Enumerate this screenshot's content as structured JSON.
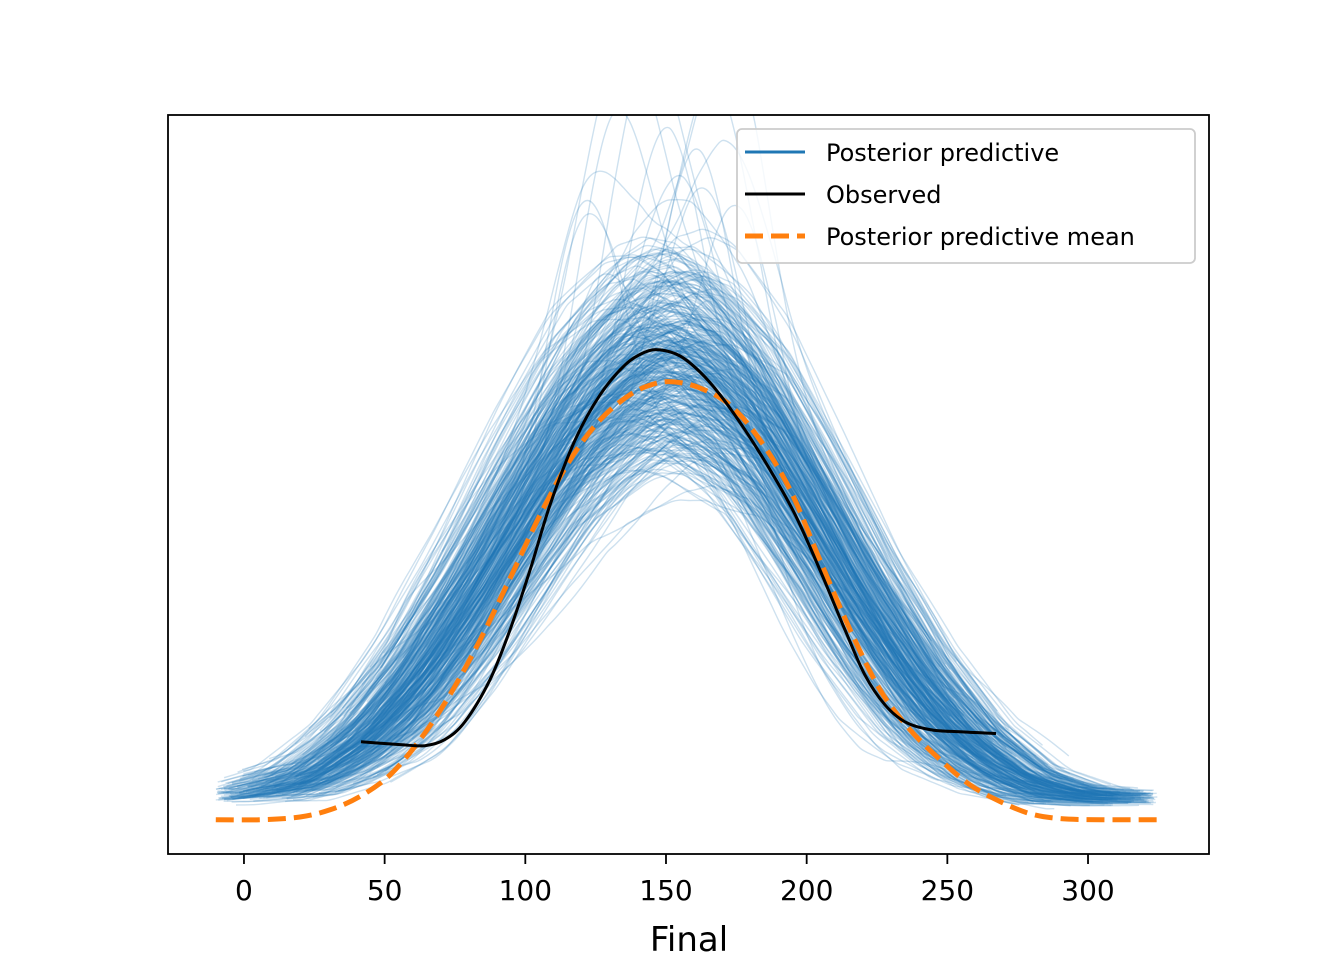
{
  "chart_data": {
    "type": "line",
    "title": "",
    "xlabel": "Final",
    "ylabel": "",
    "xlim": [
      -27,
      343
    ],
    "ylim": [
      -0.00062,
      0.01275
    ],
    "x_ticks": [
      0,
      50,
      100,
      150,
      200,
      250,
      300
    ],
    "x_tick_labels": [
      "0",
      "50",
      "100",
      "150",
      "200",
      "250",
      "300"
    ],
    "y_ticks_visible": false,
    "grid": false,
    "legend": {
      "placement": "top-right",
      "entries": [
        {
          "label": "Posterior predictive",
          "color": "#1f77b4",
          "style": "solid"
        },
        {
          "label": "Observed",
          "color": "#000000",
          "style": "solid"
        },
        {
          "label": "Posterior predictive mean",
          "color": "#ff7f0e",
          "style": "dashed"
        }
      ]
    },
    "series": [
      {
        "name": "Posterior predictive",
        "color": "#1f77b4",
        "style": "many translucent sample curves",
        "band_lower": {
          "x": [
            -10,
            20,
            40,
            60,
            80,
            100,
            120,
            140,
            150,
            160,
            180,
            200,
            220,
            240,
            260,
            280,
            300,
            325
          ],
          "y": [
            0.0003,
            0.0004,
            0.0008,
            0.0015,
            0.0027,
            0.0042,
            0.0056,
            0.0064,
            0.0066,
            0.0065,
            0.0058,
            0.0043,
            0.0027,
            0.0014,
            0.0007,
            0.00035,
            0.0003,
            0.0003
          ]
        },
        "band_upper": {
          "x": [
            -10,
            20,
            40,
            60,
            80,
            100,
            120,
            140,
            150,
            160,
            180,
            200,
            220,
            240,
            260,
            280,
            300,
            325
          ],
          "y": [
            0.0006,
            0.0011,
            0.002,
            0.0034,
            0.0052,
            0.0072,
            0.009,
            0.0101,
            0.0103,
            0.0101,
            0.0089,
            0.007,
            0.005,
            0.0033,
            0.0019,
            0.001,
            0.0006,
            0.0005
          ]
        }
      },
      {
        "name": "Observed",
        "color": "#000000",
        "style": "solid",
        "x": [
          41.6,
          55.5,
          64.3,
          71.4,
          78.5,
          87.4,
          94.6,
          101.7,
          108.8,
          117.7,
          126.6,
          135.5,
          142.5,
          147.9,
          155.0,
          162.1,
          169.2,
          178.1,
          187.0,
          195.9,
          204.7,
          213.6,
          220.7,
          227.8,
          235.0,
          243.8,
          254.5,
          267.3
        ],
        "y": [
          0.00141,
          0.00136,
          0.00134,
          0.00145,
          0.00177,
          0.00253,
          0.00344,
          0.00452,
          0.0057,
          0.00687,
          0.00769,
          0.00823,
          0.00846,
          0.0085,
          0.00839,
          0.0081,
          0.00769,
          0.00705,
          0.00633,
          0.00552,
          0.00452,
          0.00344,
          0.00262,
          0.00208,
          0.00177,
          0.00163,
          0.00159,
          0.00156
        ]
      },
      {
        "name": "Posterior predictive mean",
        "color": "#ff7f0e",
        "style": "dashed",
        "x": [
          -10.0,
          5.7,
          19.9,
          30.6,
          41.2,
          51.9,
          62.6,
          73.2,
          83.9,
          94.6,
          105.2,
          115.9,
          126.5,
          137.2,
          146.1,
          153.2,
          162.1,
          172.8,
          183.4,
          194.1,
          204.7,
          215.4,
          226.1,
          236.7,
          247.4,
          258.1,
          268.7,
          279.4,
          290.0,
          304.3,
          325.6
        ],
        "y": [
          0,
          0,
          5e-05,
          0.00018,
          0.00042,
          0.00081,
          0.00145,
          0.00226,
          0.00325,
          0.00437,
          0.00551,
          0.00651,
          0.00723,
          0.00769,
          0.00789,
          0.00792,
          0.00781,
          0.0075,
          0.00687,
          0.00597,
          0.0047,
          0.00344,
          0.00235,
          0.00163,
          0.00109,
          0.00063,
          0.00033,
          0.00011,
          2e-05,
          0,
          0
        ]
      }
    ]
  }
}
